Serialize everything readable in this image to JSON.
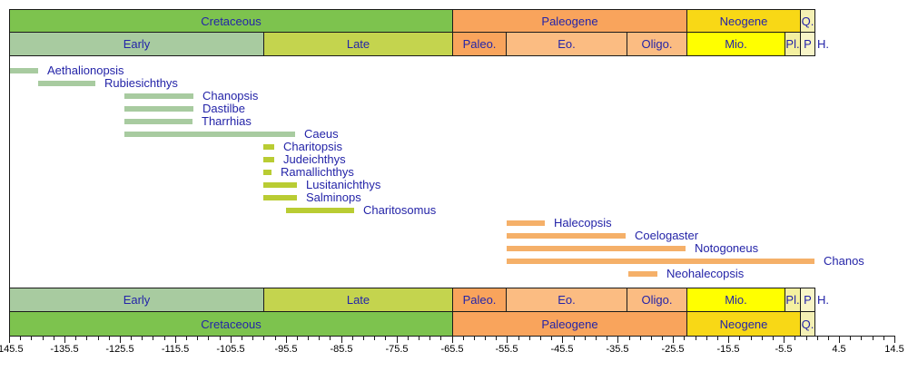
{
  "chart_data": {
    "type": "bar",
    "subtype": "geologic-temporal-range-chart",
    "title": "",
    "unit": "Ma",
    "text_color": "#2424a8",
    "axis_text_color": "#000000",
    "frame_color": "#1a1a1a",
    "axis": {
      "min": -145.5,
      "max": 14.5,
      "major_tick_step": 10,
      "minor_tick_step": 2,
      "tick_labels": [
        "-145.5",
        "-135.5",
        "-125.5",
        "-115.5",
        "-105.5",
        "-95.5",
        "-85.5",
        "-75.5",
        "-65.5",
        "-55.5",
        "-45.5",
        "-35.5",
        "-25.5",
        "-15.5",
        "-5.5",
        "4.5",
        "14.5"
      ]
    },
    "period_row": [
      {
        "label": "Cretaceous",
        "from": -145.5,
        "to": -65.5,
        "color": "#7dc34e"
      },
      {
        "label": "Paleogene",
        "from": -65.5,
        "to": -23.03,
        "color": "#f9a45c"
      },
      {
        "label": "Neogene",
        "from": -23.03,
        "to": -2.588,
        "color": "#f8d816"
      },
      {
        "label": "Q.",
        "from": -2.588,
        "to": 0,
        "color": "#f4f0b4"
      }
    ],
    "epoch_row": [
      {
        "label": "Early",
        "from": -145.5,
        "to": -99.6,
        "color": "#a8cba0"
      },
      {
        "label": "Late",
        "from": -99.6,
        "to": -65.5,
        "color": "#c4d44e"
      },
      {
        "label": "Paleo.",
        "from": -65.5,
        "to": -55.8,
        "color": "#f9a45c"
      },
      {
        "label": "Eo.",
        "from": -55.8,
        "to": -33.9,
        "color": "#fbbc82"
      },
      {
        "label": "Oligo.",
        "from": -33.9,
        "to": -23.03,
        "color": "#fbbc82"
      },
      {
        "label": "Mio.",
        "from": -23.03,
        "to": -5.33,
        "color": "#ffff00"
      },
      {
        "label": "Pl.",
        "from": -5.33,
        "to": -2.588,
        "color": "#f4f0a0"
      },
      {
        "label": "P",
        "from": -2.588,
        "to": 0,
        "color": "#f8f5c8"
      }
    ],
    "holocene_label": "H.",
    "group_colors": {
      "early_cretaceous": "#a8cba0",
      "late_cretaceous": "#b9cc33",
      "paleogene": "#f5b069"
    },
    "taxa": [
      {
        "name": "Aethalionopsis",
        "from": -145.5,
        "to": -140.3,
        "group": "early_cretaceous"
      },
      {
        "name": "Rubiesichthys",
        "from": -140.2,
        "to": -129.9,
        "group": "early_cretaceous"
      },
      {
        "name": "Chanopsis",
        "from": -124.7,
        "to": -112.2,
        "group": "early_cretaceous"
      },
      {
        "name": "Dastilbe",
        "from": -124.7,
        "to": -112.2,
        "group": "early_cretaceous"
      },
      {
        "name": "Tharrhias",
        "from": -124.7,
        "to": -112.4,
        "group": "early_cretaceous"
      },
      {
        "name": "Caeus",
        "from": -124.7,
        "to": -93.8,
        "group": "early_cretaceous"
      },
      {
        "name": "Charitopsis",
        "from": -99.6,
        "to": -97.6,
        "group": "late_cretaceous"
      },
      {
        "name": "Judeichthys",
        "from": -99.6,
        "to": -97.6,
        "group": "late_cretaceous"
      },
      {
        "name": "Ramallichthys",
        "from": -99.6,
        "to": -98.0,
        "group": "late_cretaceous"
      },
      {
        "name": "Lusitanichthys",
        "from": -99.6,
        "to": -93.5,
        "group": "late_cretaceous"
      },
      {
        "name": "Salminops",
        "from": -99.6,
        "to": -93.5,
        "group": "late_cretaceous"
      },
      {
        "name": "Charitosomus",
        "from": -95.5,
        "to": -83.2,
        "group": "late_cretaceous"
      },
      {
        "name": "Halecopsis",
        "from": -55.6,
        "to": -48.6,
        "group": "paleogene"
      },
      {
        "name": "Coelogaster",
        "from": -55.6,
        "to": -34.0,
        "group": "paleogene"
      },
      {
        "name": "Notogoneus",
        "from": -55.6,
        "to": -23.3,
        "group": "paleogene"
      },
      {
        "name": "Chanos",
        "from": -55.6,
        "to": 0,
        "group": "paleogene"
      },
      {
        "name": "Neohalecopsis",
        "from": -33.6,
        "to": -28.4,
        "group": "paleogene"
      }
    ]
  }
}
